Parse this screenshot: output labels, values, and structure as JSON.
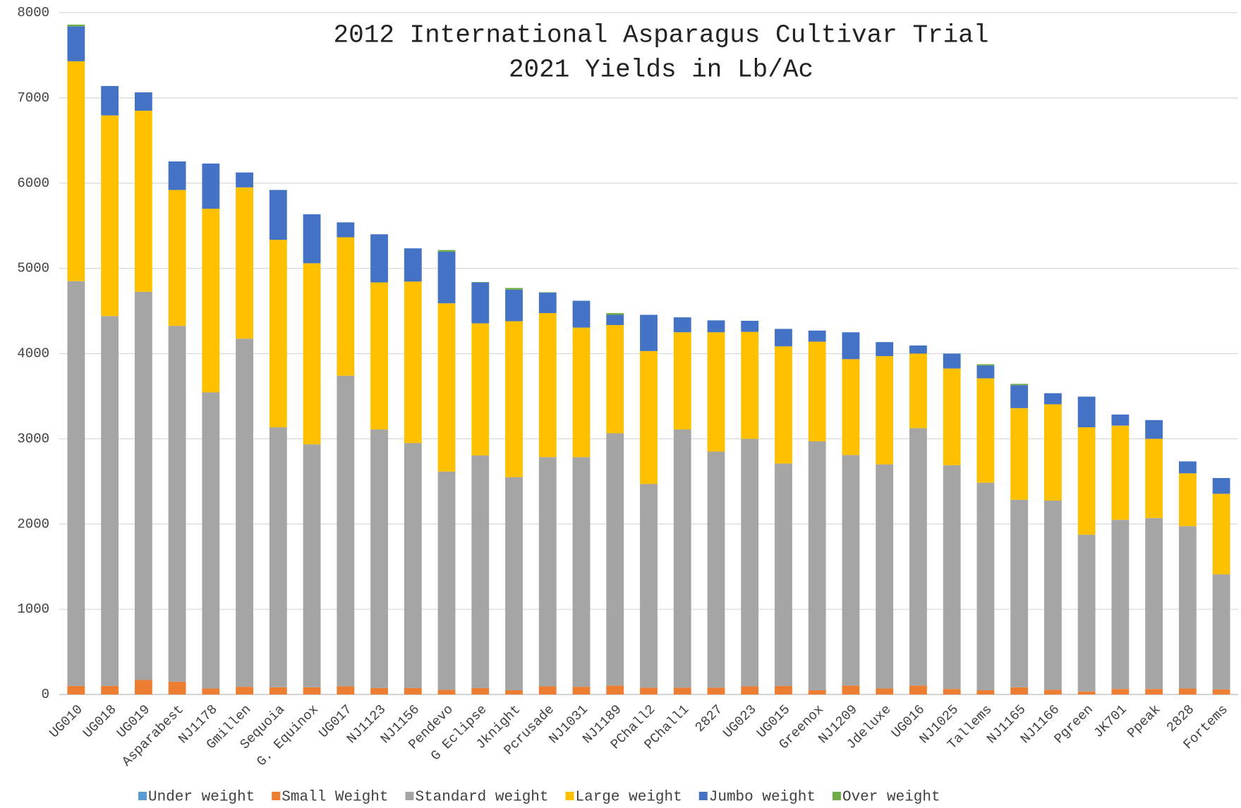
{
  "chart_data": {
    "type": "stacked_bar",
    "title": "2012 International Asparagus Cultivar Trial",
    "subtitle": "2021 Yields in Lb/Ac",
    "categories": [
      "UG010",
      "UG018",
      "UG019",
      "Asparabest",
      "NJ1178",
      "Gmillen",
      "Sequoia",
      "G. Equinox",
      "UG017",
      "NJ1123",
      "NJ1156",
      "Pendevo",
      "G Eclipse",
      "Jknight",
      "Pcrusade",
      "NJ1031",
      "NJ1189",
      "PChall2",
      "PChall1",
      "2827",
      "UG023",
      "UG015",
      "Greenox",
      "NJ1209",
      "Jdeluxe",
      "UG016",
      "NJ1025",
      "Tallems",
      "NJ1165",
      "NJ1166",
      "Pgreen",
      "JK701",
      "Ppeak",
      "2828",
      "Fortems"
    ],
    "series": [
      {
        "name": "Under weight",
        "color": "#5b9bd5",
        "values": [
          0,
          0,
          0,
          0,
          0,
          0,
          0,
          0,
          0,
          0,
          0,
          0,
          0,
          0,
          0,
          0,
          0,
          0,
          0,
          0,
          0,
          0,
          0,
          0,
          0,
          0,
          0,
          0,
          0,
          0,
          0,
          0,
          0,
          0,
          0
        ]
      },
      {
        "name": "Small Weight",
        "color": "#ed7d31",
        "values": [
          100,
          100,
          170,
          150,
          70,
          90,
          85,
          85,
          95,
          75,
          75,
          55,
          75,
          50,
          95,
          90,
          105,
          80,
          80,
          80,
          95,
          100,
          50,
          105,
          70,
          105,
          65,
          50,
          85,
          55,
          35,
          65,
          65,
          70,
          60
        ]
      },
      {
        "name": "Standard weight",
        "color": "#a5a5a5",
        "values": [
          4750,
          4340,
          4555,
          4175,
          3475,
          4085,
          3050,
          2850,
          3645,
          3035,
          2875,
          2560,
          2730,
          2500,
          2690,
          2695,
          2960,
          2390,
          3030,
          2770,
          2905,
          2610,
          2920,
          2705,
          2630,
          3020,
          2625,
          2435,
          2200,
          2220,
          1840,
          1985,
          2005,
          1905,
          1350
        ]
      },
      {
        "name": "Large weight",
        "color": "#ffc000",
        "values": [
          2580,
          2355,
          2125,
          1595,
          2155,
          1775,
          2200,
          2125,
          1625,
          1725,
          1895,
          1975,
          1550,
          1830,
          1690,
          1520,
          1270,
          1560,
          1140,
          1400,
          1255,
          1375,
          1170,
          1125,
          1270,
          875,
          1135,
          1225,
          1075,
          1130,
          1260,
          1105,
          930,
          620,
          945
        ]
      },
      {
        "name": "Jumbo weight",
        "color": "#4472c4",
        "values": [
          410,
          345,
          215,
          335,
          530,
          175,
          585,
          575,
          175,
          565,
          390,
          605,
          480,
          370,
          240,
          315,
          120,
          425,
          175,
          140,
          130,
          205,
          130,
          315,
          165,
          95,
          175,
          150,
          270,
          130,
          360,
          130,
          220,
          140,
          185
        ]
      },
      {
        "name": "Over weight",
        "color": "#70ad47",
        "values": [
          20,
          0,
          0,
          0,
          0,
          0,
          0,
          0,
          0,
          0,
          0,
          20,
          5,
          20,
          5,
          0,
          20,
          0,
          0,
          0,
          0,
          0,
          0,
          0,
          0,
          0,
          0,
          15,
          15,
          0,
          0,
          0,
          0,
          0,
          0
        ]
      }
    ],
    "ylim": [
      0,
      8000
    ],
    "yticks": [
      0,
      1000,
      2000,
      3000,
      4000,
      5000,
      6000,
      7000,
      8000
    ],
    "grid": true,
    "legend": "bottom"
  }
}
